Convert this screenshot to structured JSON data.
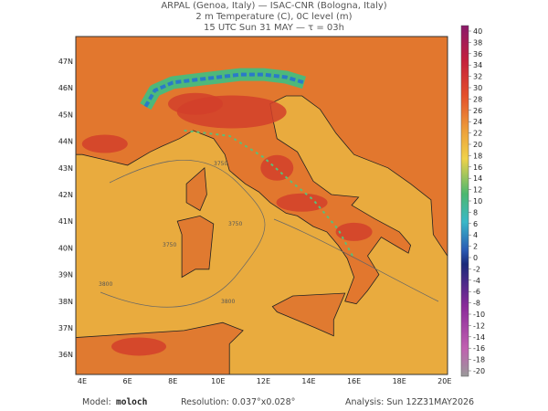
{
  "header": {
    "lines": [
      "ARPAL (Genoa, Italy)  —  ISAC-CNR (Bologna, Italy)",
      "2 m Temperature (C), 0C level (m)",
      "15 UTC Sun 31 MAY  —  τ = 03h"
    ]
  },
  "map": {
    "lat_labels": [
      "47N",
      "46N",
      "45N",
      "44N",
      "43N",
      "42N",
      "41N",
      "40N",
      "39N",
      "38N",
      "37N",
      "36N"
    ],
    "lon_labels": [
      "4E",
      "6E",
      "8E",
      "10E",
      "12E",
      "14E",
      "16E",
      "18E",
      "20E"
    ],
    "contour_labels": [
      3750,
      3750,
      3750,
      3800,
      3800
    ]
  },
  "colorbar": {
    "ticks": [
      40,
      38,
      36,
      34,
      32,
      30,
      28,
      26,
      24,
      22,
      20,
      18,
      16,
      14,
      12,
      10,
      8,
      6,
      4,
      2,
      0,
      -2,
      -4,
      -6,
      -8,
      -10,
      -12,
      -14,
      -16,
      -18,
      -20
    ]
  },
  "footer": {
    "model_label": "Model:",
    "model": "moloch",
    "resolution": "Resolution: 0.037°x0.028°",
    "analysis": "Analysis: Sun 12Z31MAY2026"
  }
}
